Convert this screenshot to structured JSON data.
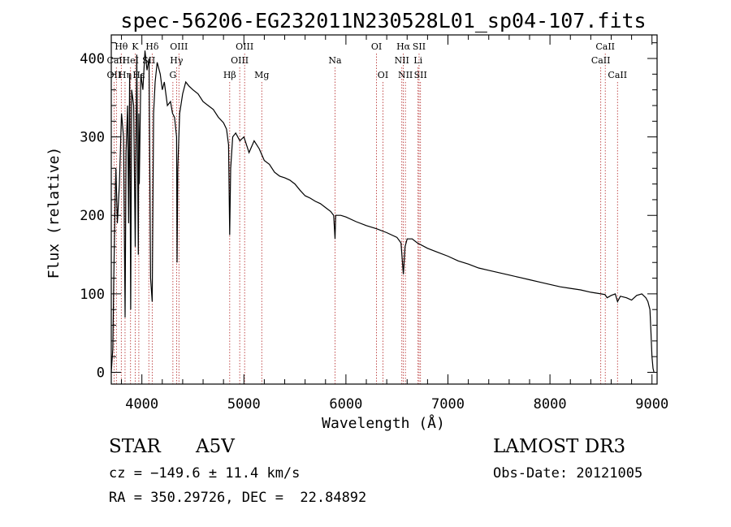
{
  "chart_data": {
    "type": "line",
    "title": "spec-56206-EG232011N230528L01_sp04-107.fits",
    "xlabel": "Wavelength (Å)",
    "ylabel": "Flux (relative)",
    "xlim": [
      3700,
      9050
    ],
    "ylim": [
      -15,
      430
    ],
    "xticks": [
      4000,
      5000,
      6000,
      7000,
      8000,
      9000
    ],
    "yticks": [
      0,
      100,
      200,
      300,
      400
    ],
    "grid": false,
    "colors": {
      "line": "#000000",
      "markers": "#b22222",
      "axes": "#000000"
    },
    "series": [
      {
        "name": "flux",
        "x": [
          3700,
          3715,
          3725,
          3735,
          3745,
          3760,
          3780,
          3800,
          3820,
          3835,
          3845,
          3860,
          3870,
          3880,
          3890,
          3900,
          3920,
          3935,
          3950,
          3965,
          3970,
          3975,
          3990,
          4010,
          4030,
          4050,
          4070,
          4085,
          4101,
          4115,
          4130,
          4150,
          4180,
          4200,
          4220,
          4250,
          4280,
          4300,
          4320,
          4340,
          4345,
          4352,
          4370,
          4400,
          4430,
          4460,
          4500,
          4550,
          4600,
          4650,
          4700,
          4750,
          4800,
          4830,
          4850,
          4861,
          4870,
          4890,
          4920,
          4960,
          5000,
          5050,
          5100,
          5150,
          5200,
          5250,
          5300,
          5350,
          5400,
          5450,
          5500,
          5550,
          5600,
          5650,
          5700,
          5750,
          5800,
          5850,
          5880,
          5893,
          5900,
          5950,
          6000,
          6100,
          6200,
          6300,
          6400,
          6500,
          6540,
          6563,
          6580,
          6600,
          6650,
          6700,
          6800,
          6900,
          7000,
          7100,
          7200,
          7300,
          7400,
          7500,
          7600,
          7700,
          7800,
          7900,
          8000,
          8100,
          8200,
          8300,
          8400,
          8500,
          8540,
          8560,
          8600,
          8640,
          8662,
          8690,
          8750,
          8800,
          8850,
          8900,
          8940,
          8960,
          8980,
          8990,
          9000,
          9010,
          9020
        ],
        "y": [
          0,
          30,
          120,
          200,
          260,
          190,
          240,
          330,
          300,
          70,
          280,
          340,
          190,
          380,
          80,
          360,
          340,
          160,
          405,
          150,
          330,
          240,
          380,
          360,
          410,
          385,
          400,
          120,
          90,
          330,
          370,
          395,
          380,
          360,
          370,
          340,
          345,
          330,
          325,
          300,
          140,
          260,
          330,
          355,
          370,
          365,
          360,
          355,
          345,
          340,
          335,
          325,
          318,
          310,
          290,
          175,
          260,
          300,
          305,
          295,
          300,
          280,
          295,
          285,
          270,
          265,
          255,
          250,
          248,
          245,
          240,
          232,
          225,
          222,
          218,
          215,
          210,
          205,
          200,
          170,
          200,
          200,
          198,
          192,
          187,
          183,
          178,
          172,
          165,
          125,
          160,
          170,
          170,
          165,
          158,
          153,
          148,
          142,
          138,
          133,
          130,
          127,
          124,
          121,
          118,
          115,
          112,
          109,
          107,
          105,
          102,
          100,
          99,
          95,
          98,
          100,
          90,
          97,
          95,
          92,
          98,
          100,
          95,
          90,
          80,
          50,
          20,
          5,
          0
        ]
      }
    ],
    "lines": [
      {
        "label": "Hθ",
        "wavelength": 3798,
        "row": 1
      },
      {
        "label": "OII",
        "wavelength": 3727,
        "row": 3
      },
      {
        "label": "Hη",
        "wavelength": 3835,
        "row": 3
      },
      {
        "label": "CaII",
        "wavelength": 3750,
        "row": 2
      },
      {
        "label": "K",
        "wavelength": 3934,
        "row": 1
      },
      {
        "label": "HeI",
        "wavelength": 3889,
        "row": 2
      },
      {
        "label": "Hε",
        "wavelength": 3970,
        "row": 3
      },
      {
        "label": "Hδ",
        "wavelength": 4101,
        "row": 1
      },
      {
        "label": "SII",
        "wavelength": 4068,
        "row": 2
      },
      {
        "label": "OIII",
        "wavelength": 4363,
        "row": 1
      },
      {
        "label": "Hγ",
        "wavelength": 4340,
        "row": 2
      },
      {
        "label": "G",
        "wavelength": 4304,
        "row": 3
      },
      {
        "label": "Hβ",
        "wavelength": 4861,
        "row": 3
      },
      {
        "label": "OIII",
        "wavelength": 5007,
        "row": 1
      },
      {
        "label": "OIII",
        "wavelength": 4959,
        "row": 2
      },
      {
        "label": "Mg",
        "wavelength": 5175,
        "row": 3
      },
      {
        "label": "Na",
        "wavelength": 5893,
        "row": 2
      },
      {
        "label": "OI",
        "wavelength": 6300,
        "row": 1
      },
      {
        "label": "OI",
        "wavelength": 6363,
        "row": 3
      },
      {
        "label": "Hα",
        "wavelength": 6563,
        "row": 1
      },
      {
        "label": "NII",
        "wavelength": 6548,
        "row": 2
      },
      {
        "label": "NII",
        "wavelength": 6583,
        "row": 3
      },
      {
        "label": "SII",
        "wavelength": 6717,
        "row": 1
      },
      {
        "label": "Li",
        "wavelength": 6707,
        "row": 2
      },
      {
        "label": "SII",
        "wavelength": 6731,
        "row": 3
      },
      {
        "label": "CaII",
        "wavelength": 8542,
        "row": 1
      },
      {
        "label": "CaII",
        "wavelength": 8498,
        "row": 2
      },
      {
        "label": "CaII",
        "wavelength": 8662,
        "row": 3
      }
    ]
  },
  "info": {
    "class_label": "STAR",
    "subclass": "A5V",
    "survey": "LAMOST DR3",
    "cz": "cz = −149.6 ± 11.4 km/s",
    "obs_date": "Obs-Date: 20121005",
    "coords": "RA = 350.29726, DEC =  22.84892"
  }
}
